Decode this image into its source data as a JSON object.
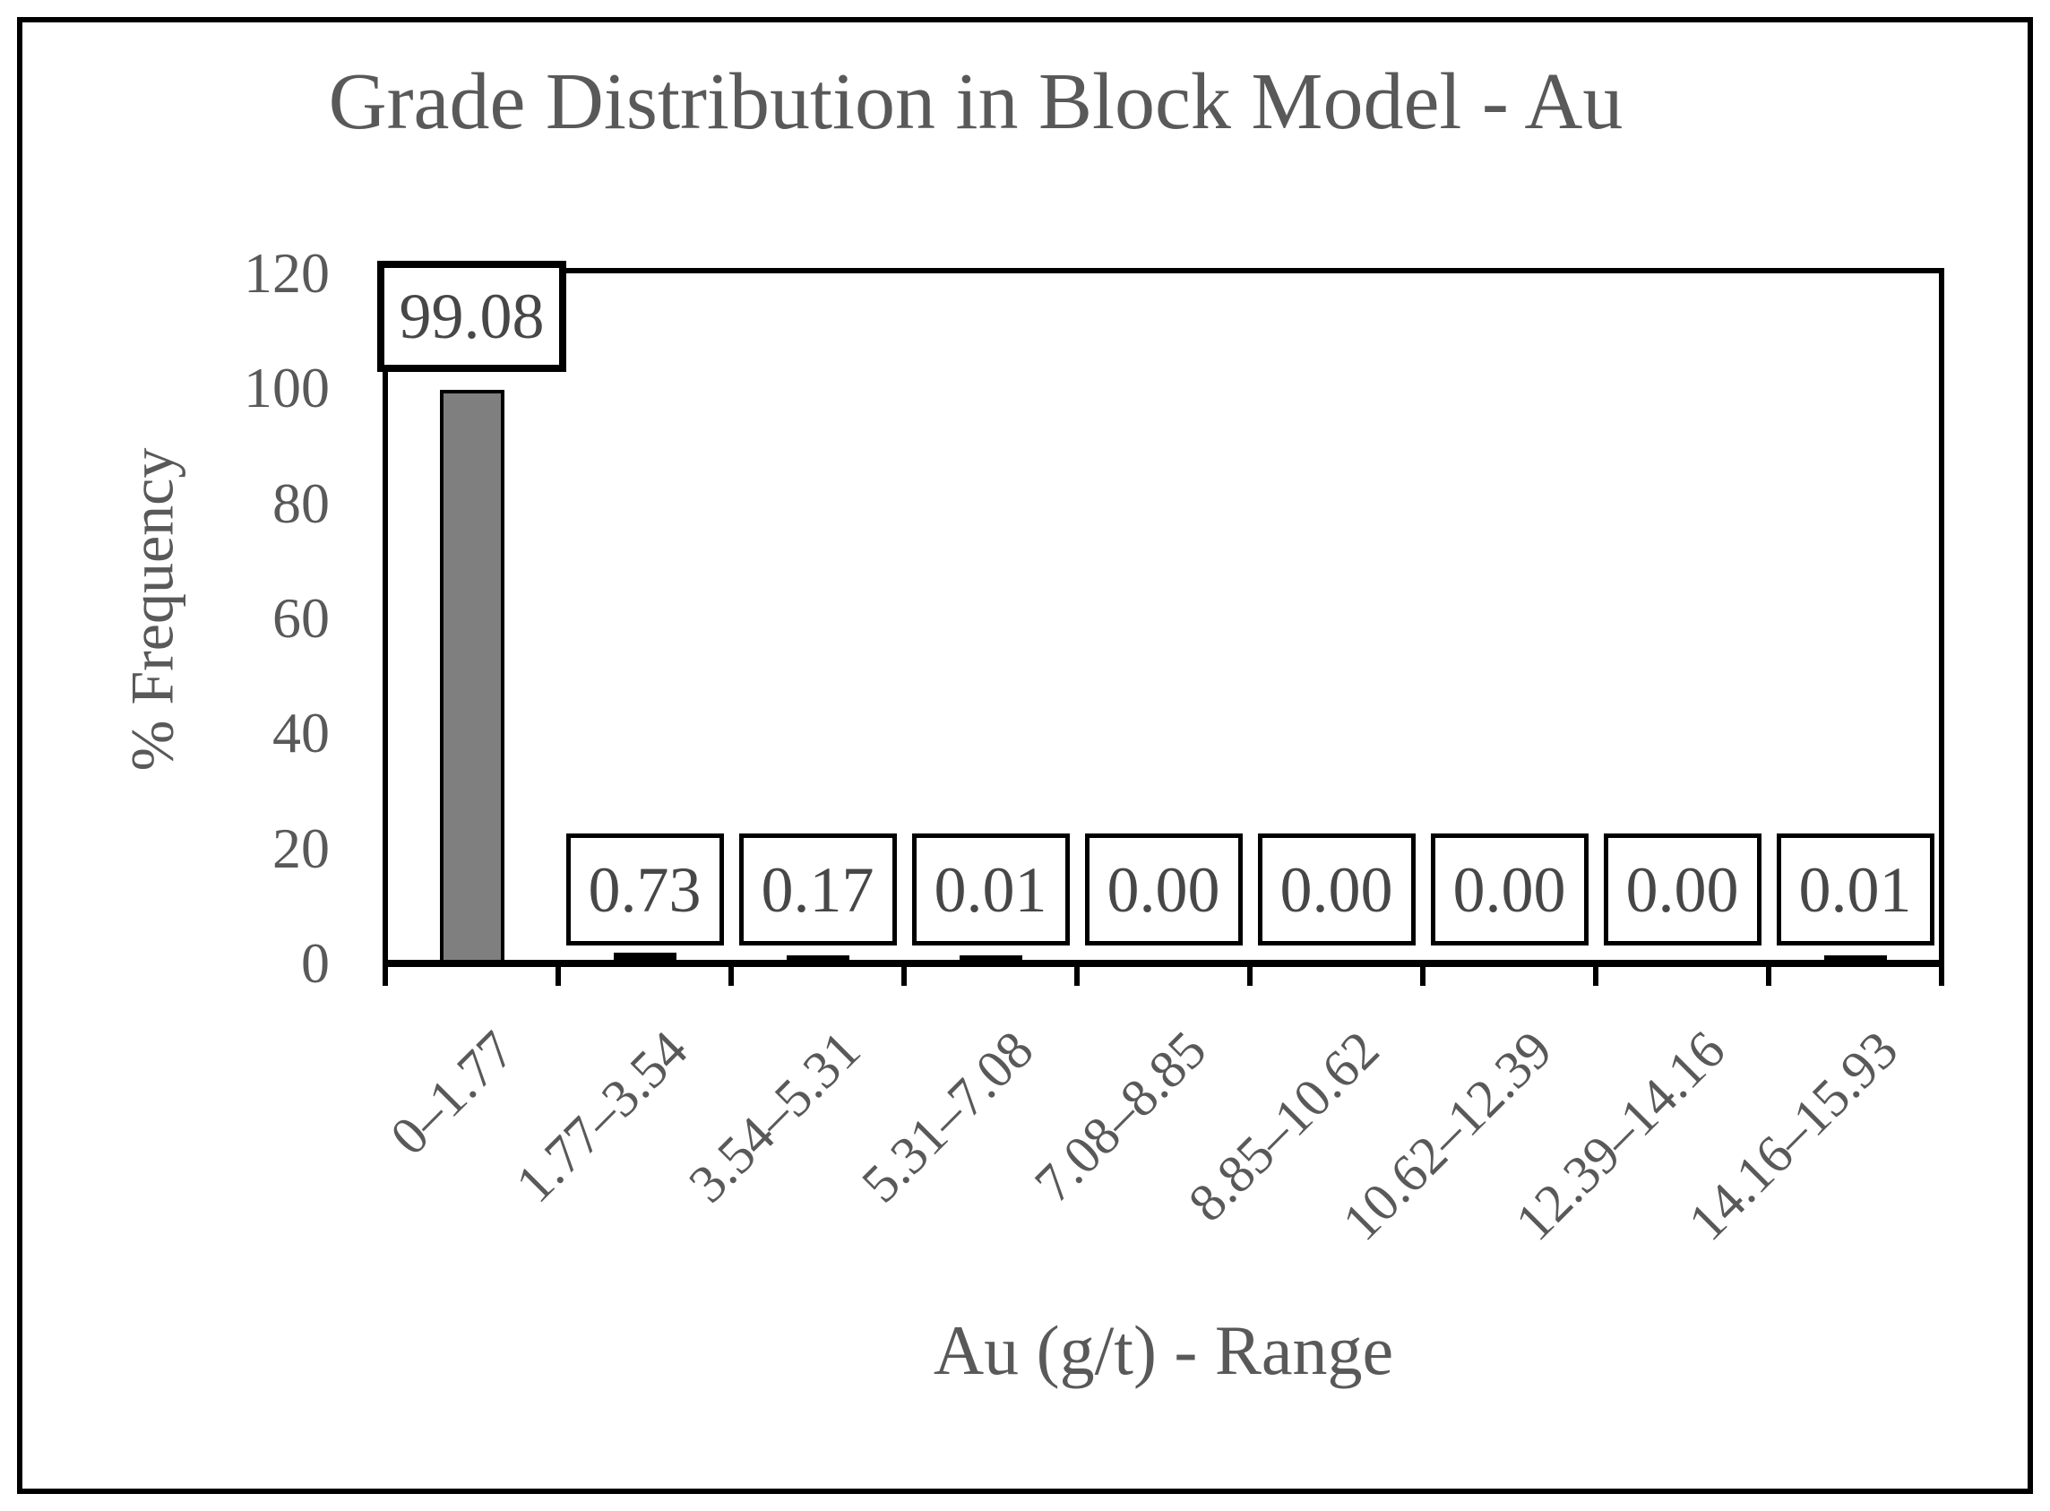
{
  "window": {
    "background": "#ffffff",
    "outer_border_color": "#000000"
  },
  "chart_data": {
    "type": "bar",
    "title": "Grade Distribution in Block Model - Au",
    "xlabel": "Au (g/t) - Range",
    "ylabel": "% Frequency",
    "categories": [
      "0–1.77",
      "1.77–3.54",
      "3.54–5.31",
      "5.31–7.08",
      "7.08–8.85",
      "8.85–10.62",
      "10.62–12.39",
      "12.39–14.16",
      "14.16–15.93"
    ],
    "values": [
      99.08,
      0.73,
      0.17,
      0.01,
      0.0,
      0.0,
      0.0,
      0.0,
      0.01
    ],
    "data_labels": [
      "99.08",
      "0.73",
      "0.17",
      "0.01",
      "0.00",
      "0.00",
      "0.00",
      "0.00",
      "0.01"
    ],
    "yticks": [
      0,
      20,
      40,
      60,
      80,
      100,
      120
    ],
    "ylim": [
      0,
      120
    ],
    "grid": false,
    "legend": false,
    "bar_color": "#7f7f7f",
    "bar_border_color": "#000000",
    "label_box_background": "#ffffff",
    "label_box_border": "#000000",
    "axis_line_color": "#000000",
    "text_color": "#595959",
    "data_label_color": "#474747"
  }
}
